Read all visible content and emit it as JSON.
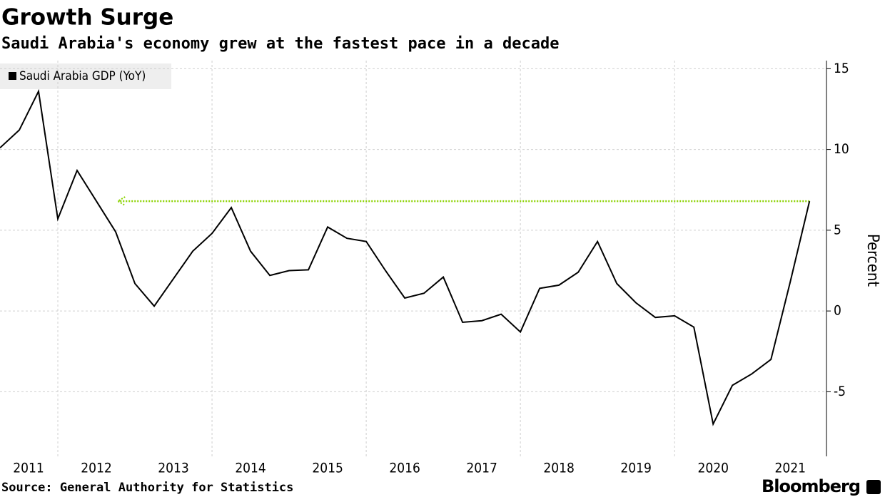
{
  "chart_data": {
    "type": "line",
    "title": "Growth Surge",
    "subtitle": "Saudi Arabia's economy grew at the fastest pace in a decade",
    "source": "Source: General Authority for Statistics",
    "brand": "Bloomberg",
    "y_label": "Percent",
    "series": [
      {
        "name": "Saudi Arabia GDP (YoY)",
        "color": "#000000",
        "x": [
          2011.25,
          2011.5,
          2011.75,
          2012,
          2012.25,
          2012.5,
          2012.75,
          2013,
          2013.25,
          2013.5,
          2013.75,
          2014,
          2014.25,
          2014.5,
          2014.75,
          2015,
          2015.25,
          2015.5,
          2015.75,
          2016,
          2016.25,
          2016.5,
          2016.75,
          2017,
          2017.25,
          2017.5,
          2017.75,
          2018,
          2018.25,
          2018.5,
          2018.75,
          2019,
          2019.25,
          2019.5,
          2019.75,
          2020,
          2020.25,
          2020.5,
          2020.75,
          2021,
          2021.25,
          2021.5,
          2021.75
        ],
        "values": [
          10.1,
          11.2,
          13.6,
          5.7,
          8.7,
          6.8,
          4.9,
          1.7,
          0.3,
          2.0,
          3.7,
          4.8,
          6.4,
          3.7,
          2.2,
          2.5,
          2.55,
          5.2,
          4.5,
          4.3,
          2.5,
          0.8,
          1.1,
          2.1,
          -0.7,
          -0.6,
          -0.2,
          -1.3,
          1.4,
          1.6,
          2.4,
          4.3,
          1.7,
          0.5,
          -0.4,
          -0.3,
          -1.0,
          -7.0,
          -4.6,
          -3.9,
          -3.0,
          1.8,
          6.8
        ]
      }
    ],
    "reference_line": {
      "y": 6.8,
      "x": [
        2021.75,
        2012.78
      ],
      "color": "#8bd200"
    },
    "xlim": [
      2011.25,
      2021.97
    ],
    "ylim": [
      -9,
      15.5
    ],
    "yticks": [
      -5,
      0,
      5,
      10,
      15
    ],
    "xticks": [
      {
        "value": 2011.62,
        "label": "2011"
      },
      {
        "value": 2012.5,
        "label": "2012"
      },
      {
        "value": 2013.5,
        "label": "2013"
      },
      {
        "value": 2014.5,
        "label": "2014"
      },
      {
        "value": 2015.5,
        "label": "2015"
      },
      {
        "value": 2016.5,
        "label": "2016"
      },
      {
        "value": 2017.5,
        "label": "2017"
      },
      {
        "value": 2018.5,
        "label": "2018"
      },
      {
        "value": 2019.5,
        "label": "2019"
      },
      {
        "value": 2020.5,
        "label": "2020"
      },
      {
        "value": 2021.5,
        "label": "2021"
      }
    ],
    "xgrid": [
      2012,
      2014,
      2016,
      2018,
      2020
    ],
    "grid": true
  }
}
